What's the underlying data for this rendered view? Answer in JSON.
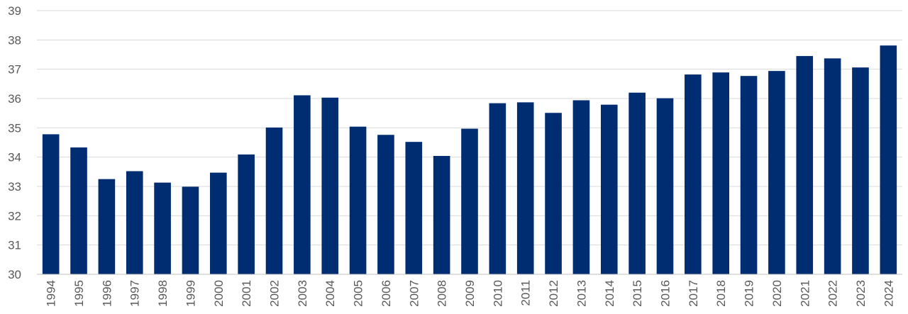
{
  "chart_data": {
    "type": "bar",
    "title": "",
    "xlabel": "",
    "ylabel": "",
    "categories": [
      "1994",
      "1995",
      "1996",
      "1997",
      "1998",
      "1999",
      "2000",
      "2001",
      "2002",
      "2003",
      "2004",
      "2005",
      "2006",
      "2007",
      "2008",
      "2009",
      "2010",
      "2011",
      "2012",
      "2013",
      "2014",
      "2015",
      "2016",
      "2017",
      "2018",
      "2019",
      "2020",
      "2021",
      "2022",
      "2023",
      "2024"
    ],
    "values": [
      34.78,
      34.33,
      33.25,
      33.52,
      33.13,
      32.99,
      33.47,
      34.09,
      35.01,
      36.11,
      36.03,
      35.04,
      34.76,
      34.52,
      34.04,
      34.97,
      35.84,
      35.87,
      35.51,
      35.94,
      35.79,
      36.2,
      36.01,
      36.82,
      36.89,
      36.77,
      36.94,
      37.45,
      37.37,
      37.06,
      37.81
    ],
    "yticks": [
      "30",
      "31",
      "32",
      "33",
      "34",
      "35",
      "36",
      "37",
      "38",
      "39"
    ],
    "ylim": [
      30,
      39
    ],
    "grid": true,
    "legend": "none",
    "bar_color": "#002D72"
  }
}
